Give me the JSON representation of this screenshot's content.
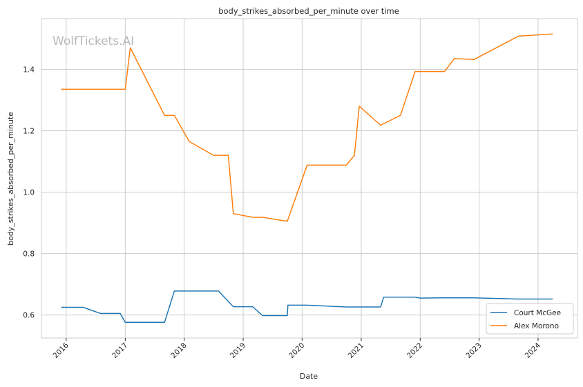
{
  "chart_data": {
    "type": "line",
    "title": "body_strikes_absorbed_per_minute over time",
    "xlabel": "Date",
    "ylabel": "body_strikes_absorbed_per_minute",
    "watermark": "WolfTickets.AI",
    "x_ticks": [
      "2016",
      "2017",
      "2018",
      "2019",
      "2020",
      "2021",
      "2022",
      "2023",
      "2024"
    ],
    "y_ticks": [
      "0.6",
      "0.8",
      "1.0",
      "1.2",
      "1.4"
    ],
    "xlim": [
      "2015-08-01",
      "2024-09-01"
    ],
    "ylim": [
      0.525,
      1.565
    ],
    "grid": true,
    "legend_position": "lower-right",
    "series": [
      {
        "name": "Court McGee",
        "color": "#1f77b4",
        "points": [
          [
            "2015-12-01",
            0.625
          ],
          [
            "2016-04-15",
            0.625
          ],
          [
            "2016-08-01",
            0.605
          ],
          [
            "2016-12-01",
            0.605
          ],
          [
            "2017-01-01",
            0.576
          ],
          [
            "2017-09-01",
            0.576
          ],
          [
            "2017-11-01",
            0.678
          ],
          [
            "2018-08-01",
            0.678
          ],
          [
            "2018-11-01",
            0.627
          ],
          [
            "2019-03-01",
            0.627
          ],
          [
            "2019-05-01",
            0.598
          ],
          [
            "2019-10-01",
            0.598
          ],
          [
            "2019-10-05",
            0.632
          ],
          [
            "2020-02-01",
            0.632
          ],
          [
            "2020-10-01",
            0.626
          ],
          [
            "2021-05-01",
            0.626
          ],
          [
            "2021-05-20",
            0.658
          ],
          [
            "2021-12-01",
            0.658
          ],
          [
            "2022-01-01",
            0.655
          ],
          [
            "2022-06-01",
            0.656
          ],
          [
            "2022-12-01",
            0.656
          ],
          [
            "2023-09-01",
            0.652
          ],
          [
            "2024-04-01",
            0.652
          ]
        ]
      },
      {
        "name": "Alex Morono",
        "color": "#ff7f0e",
        "points": [
          [
            "2015-12-01",
            1.335
          ],
          [
            "2017-01-01",
            1.335
          ],
          [
            "2017-02-01",
            1.47
          ],
          [
            "2017-09-01",
            1.25
          ],
          [
            "2017-11-01",
            1.25
          ],
          [
            "2018-02-01",
            1.165
          ],
          [
            "2018-07-01",
            1.12
          ],
          [
            "2018-10-01",
            1.12
          ],
          [
            "2018-11-01",
            0.93
          ],
          [
            "2019-03-01",
            0.918
          ],
          [
            "2019-05-01",
            0.918
          ],
          [
            "2019-10-01",
            0.905
          ],
          [
            "2020-02-01",
            1.088
          ],
          [
            "2020-10-01",
            1.088
          ],
          [
            "2020-11-20",
            1.12
          ],
          [
            "2020-12-20",
            1.28
          ],
          [
            "2021-05-01",
            1.218
          ],
          [
            "2021-09-01",
            1.25
          ],
          [
            "2021-12-01",
            1.393
          ],
          [
            "2022-06-01",
            1.393
          ],
          [
            "2022-08-01",
            1.435
          ],
          [
            "2022-12-01",
            1.432
          ],
          [
            "2023-09-01",
            1.508
          ],
          [
            "2024-04-01",
            1.515
          ]
        ]
      }
    ]
  }
}
